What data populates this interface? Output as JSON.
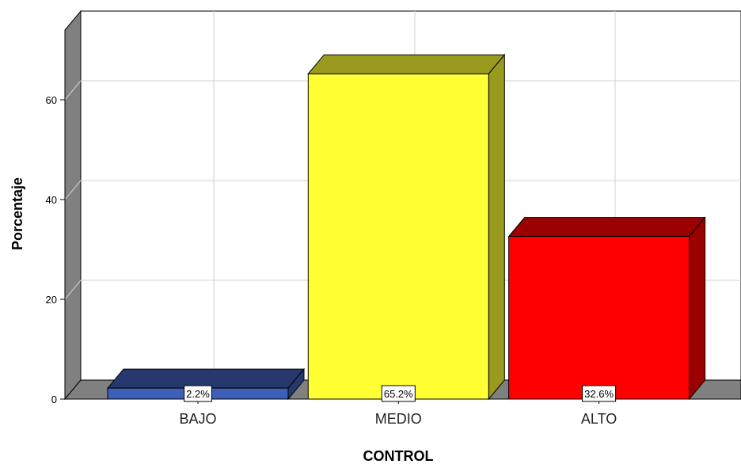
{
  "chart_data": {
    "type": "bar",
    "categories": [
      "BAJO",
      "MEDIO",
      "ALTO"
    ],
    "values": [
      2.2,
      65.2,
      32.6
    ],
    "data_labels": [
      "2.2%",
      "65.2%",
      "32.6%"
    ],
    "xlabel": "CONTROL",
    "ylabel": "Porcentaje",
    "ylim": [
      0,
      70
    ],
    "yticks": [
      "0",
      "20",
      "40",
      "60"
    ],
    "grid": true,
    "style": "3d",
    "colors": {
      "BAJO": {
        "front": "#3d5fb8",
        "top": "#26386e",
        "side": "#26386e"
      },
      "MEDIO": {
        "front": "#ffff33",
        "top": "#9a9a1e",
        "side": "#9a9a1e"
      },
      "ALTO": {
        "front": "#ff0000",
        "top": "#9a0000",
        "side": "#9a0000"
      },
      "wall": "#808080",
      "grid": "#d0d0d0"
    }
  }
}
